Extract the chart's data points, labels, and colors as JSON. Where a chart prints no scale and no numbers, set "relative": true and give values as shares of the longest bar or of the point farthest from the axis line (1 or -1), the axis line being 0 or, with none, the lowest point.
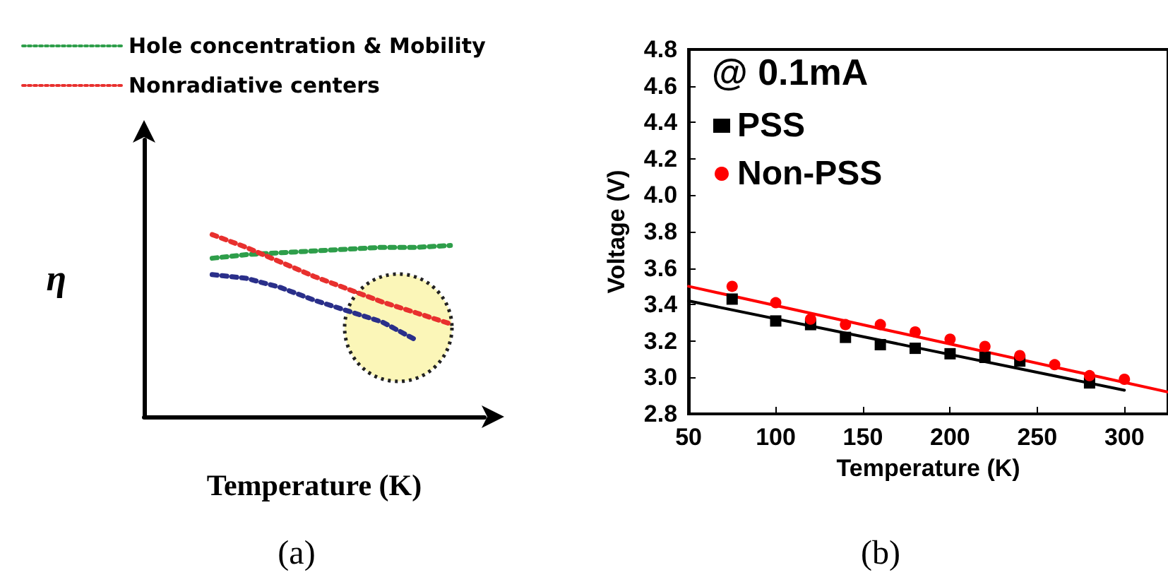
{
  "chart_data": [
    {
      "type": "line",
      "relative": true,
      "categories": [
        null,
        null,
        null,
        null,
        null,
        null,
        null,
        null,
        null,
        null,
        null
      ],
      "series": [
        {
          "name": "Hole concentration & Mobility",
          "color": "#2e9e4a",
          "values": [
            null,
            null,
            0.87,
            0.89,
            0.9,
            0.91,
            0.92,
            0.93,
            0.93,
            0.94,
            null
          ]
        },
        {
          "name": "Nonradiative centers",
          "color": "#e8302e",
          "values": [
            null,
            null,
            1.0,
            0.93,
            0.85,
            0.77,
            0.7,
            0.63,
            0.57,
            0.51,
            null
          ]
        },
        {
          "color": "#2a2f8a",
          "values": [
            null,
            null,
            0.78,
            0.76,
            0.71,
            0.64,
            0.58,
            0.52,
            0.42,
            null,
            null
          ]
        }
      ],
      "line_style": "dotted",
      "marker": "none",
      "xlabel": "Temperature (K)",
      "ylabel": "η",
      "legend": "top left",
      "annotations": [
        "(a)"
      ]
    },
    {
      "type": "scatter",
      "series": [
        {
          "name": "PSS",
          "type": "scatter",
          "marker": "square",
          "color": "#000000",
          "x": [
            75,
            100,
            120,
            140,
            160,
            180,
            200,
            220,
            240,
            260,
            280
          ],
          "values": [
            3.43,
            3.31,
            3.29,
            3.22,
            3.18,
            3.16,
            3.13,
            3.11,
            3.09,
            null,
            2.97
          ]
        },
        {
          "name": "Non-PSS",
          "type": "scatter",
          "marker": "circle",
          "color": "#ff0000",
          "x": [
            75,
            100,
            120,
            140,
            160,
            180,
            200,
            220,
            240,
            260,
            280,
            300
          ],
          "values": [
            3.5,
            3.41,
            3.32,
            3.29,
            3.29,
            3.25,
            3.21,
            3.17,
            3.12,
            3.07,
            3.01,
            2.99
          ]
        },
        {
          "type": "line",
          "marker": "none",
          "color": "#000000",
          "x": [
            50,
            300
          ],
          "values": [
            3.42,
            2.93
          ]
        },
        {
          "type": "line",
          "marker": "none",
          "color": "#ff0000",
          "x": [
            50,
            325
          ],
          "values": [
            3.5,
            2.92
          ]
        }
      ],
      "xlabel": "Temperature (K)",
      "ylabel": "Voltage (V)",
      "legend_title": "@ 0.1mA",
      "legend": "top left",
      "xlim": [
        50,
        325
      ],
      "xticks": [
        50,
        100,
        150,
        200,
        250,
        300
      ],
      "ylim": [
        2.8,
        4.8
      ],
      "yticks": [
        2.8,
        {
          "value": 3,
          "label": "3.0"
        },
        3.2,
        3.4,
        3.6,
        3.8,
        {
          "value": 4,
          "label": "4.0"
        },
        4.2,
        4.4,
        4.6,
        4.8
      ],
      "annotations": [
        "(b)"
      ]
    }
  ]
}
